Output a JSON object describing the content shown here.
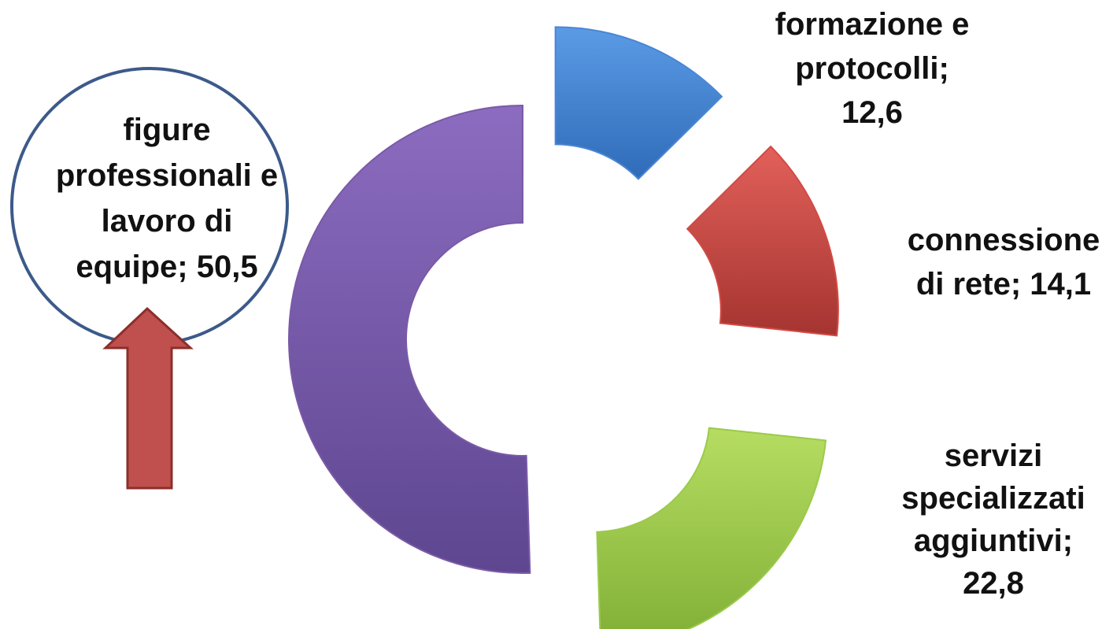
{
  "chart_data": {
    "type": "donut",
    "exploded": true,
    "categories": [
      "formazione e protocolli",
      "connessione di rete",
      "servizi specializzati aggiuntivi",
      "figure professionali e lavoro di equipe"
    ],
    "values": [
      12.6,
      14.1,
      22.8,
      50.5
    ],
    "colors": [
      "#4a86d4",
      "#d24a44",
      "#9bca4a",
      "#7a5aa6"
    ],
    "data_labels": [
      {
        "lines": [
          "formazione e",
          "protocolli;",
          "12,6"
        ]
      },
      {
        "lines": [
          "connessione",
          "di rete; 14,1"
        ]
      },
      {
        "lines": [
          "servizi",
          "specializzati",
          "aggiuntivi;",
          "22,8"
        ]
      },
      {
        "lines": [
          "figure",
          "professionali e",
          "lavoro di",
          "equipe; 50,5"
        ]
      }
    ],
    "highlight": {
      "circle_around_category": "figure professionali e lavoro di equipe",
      "circle_color": "#3c5a8a",
      "arrow_color": "#c0504d"
    }
  }
}
